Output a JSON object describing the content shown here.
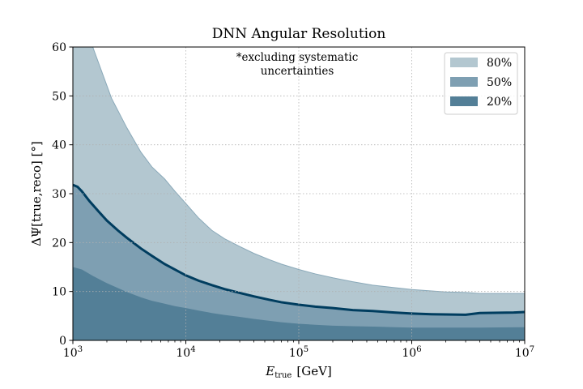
{
  "chart_data": {
    "type": "area",
    "title": "DNN Angular Resolution",
    "xlabel_main": "E",
    "xlabel_sub": "true",
    "xlabel_unit": "[GeV]",
    "ylabel": "ΔΨ[true,reco] [°]",
    "xscale": "log",
    "xlim": [
      1000,
      10000000
    ],
    "ylim": [
      0,
      60
    ],
    "x_ticks": [
      {
        "value": 1000,
        "base": "10",
        "exp": "3"
      },
      {
        "value": 10000,
        "base": "10",
        "exp": "4"
      },
      {
        "value": 100000,
        "base": "10",
        "exp": "5"
      },
      {
        "value": 1000000,
        "base": "10",
        "exp": "6"
      },
      {
        "value": 10000000,
        "base": "10",
        "exp": "7"
      }
    ],
    "y_ticks": [
      "0",
      "10",
      "20",
      "30",
      "40",
      "50",
      "60"
    ],
    "grid": true,
    "legend_position": "top-right",
    "annotation_line1": "*excluding systematic",
    "annotation_line2": "uncertainties",
    "colors": {
      "p80": "#b3c7d0",
      "p50": "#7e9fb2",
      "p20": "#537f97",
      "median": "#003d5f",
      "edge80": "#8aa9b9"
    },
    "series": [
      {
        "name": "80%",
        "color": "#b3c7d0",
        "x": [
          1000,
          1200,
          1500,
          1800,
          2200,
          3000,
          4000,
          5000,
          6500,
          8000,
          10000,
          13000,
          17000,
          22000,
          30000,
          40000,
          55000,
          70000,
          100000,
          140000,
          200000,
          300000,
          450000,
          700000,
          1000000,
          1500000,
          2000000,
          3000000,
          4000000,
          6000000,
          8000000,
          10000000
        ],
        "y": [
          60,
          60,
          60,
          55,
          49.5,
          43.5,
          38.5,
          35.5,
          33,
          30.5,
          28,
          25,
          22.5,
          20.8,
          19.2,
          17.8,
          16.5,
          15.6,
          14.5,
          13.6,
          12.8,
          12,
          11.3,
          10.8,
          10.4,
          10.1,
          9.9,
          9.8,
          9.6,
          9.6,
          9.6,
          9.6
        ]
      },
      {
        "name": "50%",
        "color": "#7e9fb2",
        "x": [
          1000,
          1100,
          1200,
          1400,
          1700,
          2000,
          2500,
          3000,
          4000,
          5000,
          6500,
          8000,
          10000,
          13000,
          17000,
          22000,
          30000,
          40000,
          55000,
          70000,
          100000,
          140000,
          200000,
          300000,
          450000,
          700000,
          1000000,
          1500000,
          2000000,
          3000000,
          4000000,
          6000000,
          8000000,
          10000000
        ],
        "y": [
          31.8,
          31.4,
          30.5,
          28.5,
          26.3,
          24.5,
          22.5,
          21,
          18.8,
          17.3,
          15.6,
          14.5,
          13.3,
          12.2,
          11.3,
          10.5,
          9.7,
          9,
          8.3,
          7.8,
          7.3,
          6.9,
          6.6,
          6.2,
          6,
          5.7,
          5.5,
          5.35,
          5.3,
          5.25,
          5.6,
          5.65,
          5.7,
          5.8
        ]
      },
      {
        "name": "20%",
        "color": "#537f97",
        "x": [
          1000,
          1200,
          1500,
          2000,
          3000,
          4000,
          5000,
          6500,
          8000,
          10000,
          13000,
          17000,
          22000,
          30000,
          40000,
          55000,
          70000,
          100000,
          140000,
          200000,
          300000,
          500000,
          700000,
          1000000,
          2000000,
          4000000,
          6000000,
          10000000
        ],
        "y": [
          15,
          14.5,
          13.2,
          11.7,
          9.9,
          8.8,
          8.1,
          7.5,
          7.0,
          6.6,
          6.1,
          5.6,
          5.2,
          4.8,
          4.4,
          4.0,
          3.7,
          3.4,
          3.2,
          3.0,
          2.9,
          2.8,
          2.7,
          2.6,
          2.6,
          2.6,
          2.65,
          2.7
        ]
      }
    ]
  }
}
